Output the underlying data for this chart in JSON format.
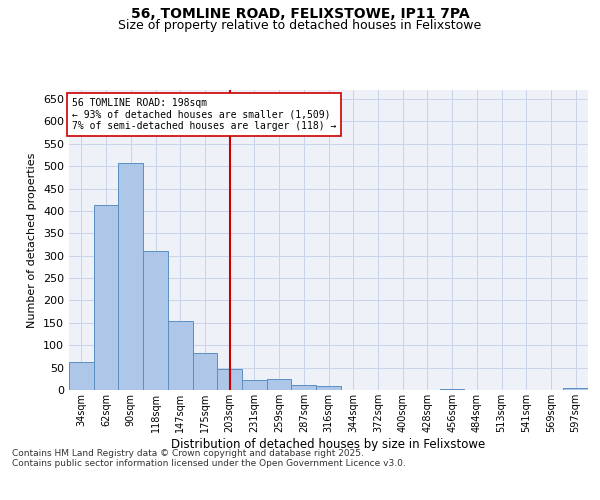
{
  "title_line1": "56, TOMLINE ROAD, FELIXSTOWE, IP11 7PA",
  "title_line2": "Size of property relative to detached houses in Felixstowe",
  "xlabel": "Distribution of detached houses by size in Felixstowe",
  "ylabel": "Number of detached properties",
  "categories": [
    "34sqm",
    "62sqm",
    "90sqm",
    "118sqm",
    "147sqm",
    "175sqm",
    "203sqm",
    "231sqm",
    "259sqm",
    "287sqm",
    "316sqm",
    "344sqm",
    "372sqm",
    "400sqm",
    "428sqm",
    "456sqm",
    "484sqm",
    "513sqm",
    "541sqm",
    "569sqm",
    "597sqm"
  ],
  "values": [
    62,
    413,
    506,
    311,
    155,
    83,
    46,
    22,
    24,
    11,
    8,
    0,
    0,
    0,
    0,
    3,
    0,
    0,
    0,
    0,
    4
  ],
  "bar_color": "#aec6e8",
  "bar_edge_color": "#5a8fc2",
  "vline_x": 6,
  "vline_color": "#cc0000",
  "annotation_text": "56 TOMLINE ROAD: 198sqm\n← 93% of detached houses are smaller (1,509)\n7% of semi-detached houses are larger (118) →",
  "annotation_box_color": "#ffffff",
  "annotation_box_edge": "#cc0000",
  "ylim": [
    0,
    670
  ],
  "yticks": [
    0,
    50,
    100,
    150,
    200,
    250,
    300,
    350,
    400,
    450,
    500,
    550,
    600,
    650
  ],
  "grid_color": "#c8d4e8",
  "background_color": "#eef2f8",
  "footer_line1": "Contains HM Land Registry data © Crown copyright and database right 2025.",
  "footer_line2": "Contains public sector information licensed under the Open Government Licence v3.0.",
  "title_fontsize": 10,
  "subtitle_fontsize": 9,
  "footer_fontsize": 6.5
}
